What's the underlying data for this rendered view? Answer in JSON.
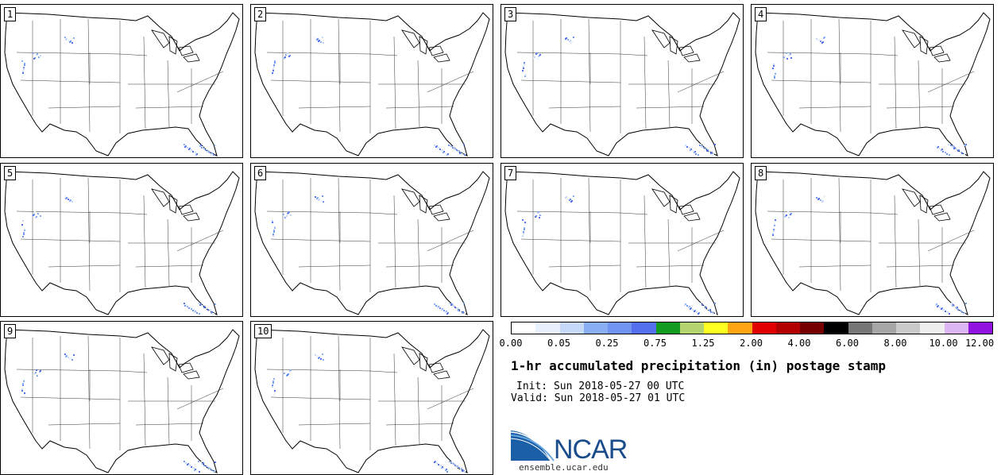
{
  "panels": [
    {
      "label": "1"
    },
    {
      "label": "2"
    },
    {
      "label": "3"
    },
    {
      "label": "4"
    },
    {
      "label": "5"
    },
    {
      "label": "6"
    },
    {
      "label": "7"
    },
    {
      "label": "8"
    },
    {
      "label": "9"
    },
    {
      "label": "10"
    }
  ],
  "colorbar": {
    "colors": [
      "#ffffff",
      "#e8f0fc",
      "#c6d9f8",
      "#8aaef4",
      "#6f95f0",
      "#5470ee",
      "#139c22",
      "#b3d46e",
      "#ffff22",
      "#ffa513",
      "#e00000",
      "#b30000",
      "#760000",
      "#000000",
      "#777777",
      "#a6a6a6",
      "#cacaca",
      "#eeeeee",
      "#dbb6f2",
      "#9013e0"
    ],
    "ticks": [
      "0.00",
      "0.05",
      "0.25",
      "0.75",
      "1.25",
      "2.00",
      "4.00",
      "6.00",
      "8.00",
      "10.00",
      "12.00"
    ]
  },
  "title": "1-hr accumulated precipitation (in) postage stamp",
  "init": "Init: Sun 2018-05-27 00 UTC",
  "valid": "Valid: Sun 2018-05-27 01 UTC",
  "logo_text": "NCAR",
  "site": "ensemble.ucar.edu",
  "logo_colors": {
    "blue": "#1a5fa8",
    "light": "#6aa9dd"
  }
}
